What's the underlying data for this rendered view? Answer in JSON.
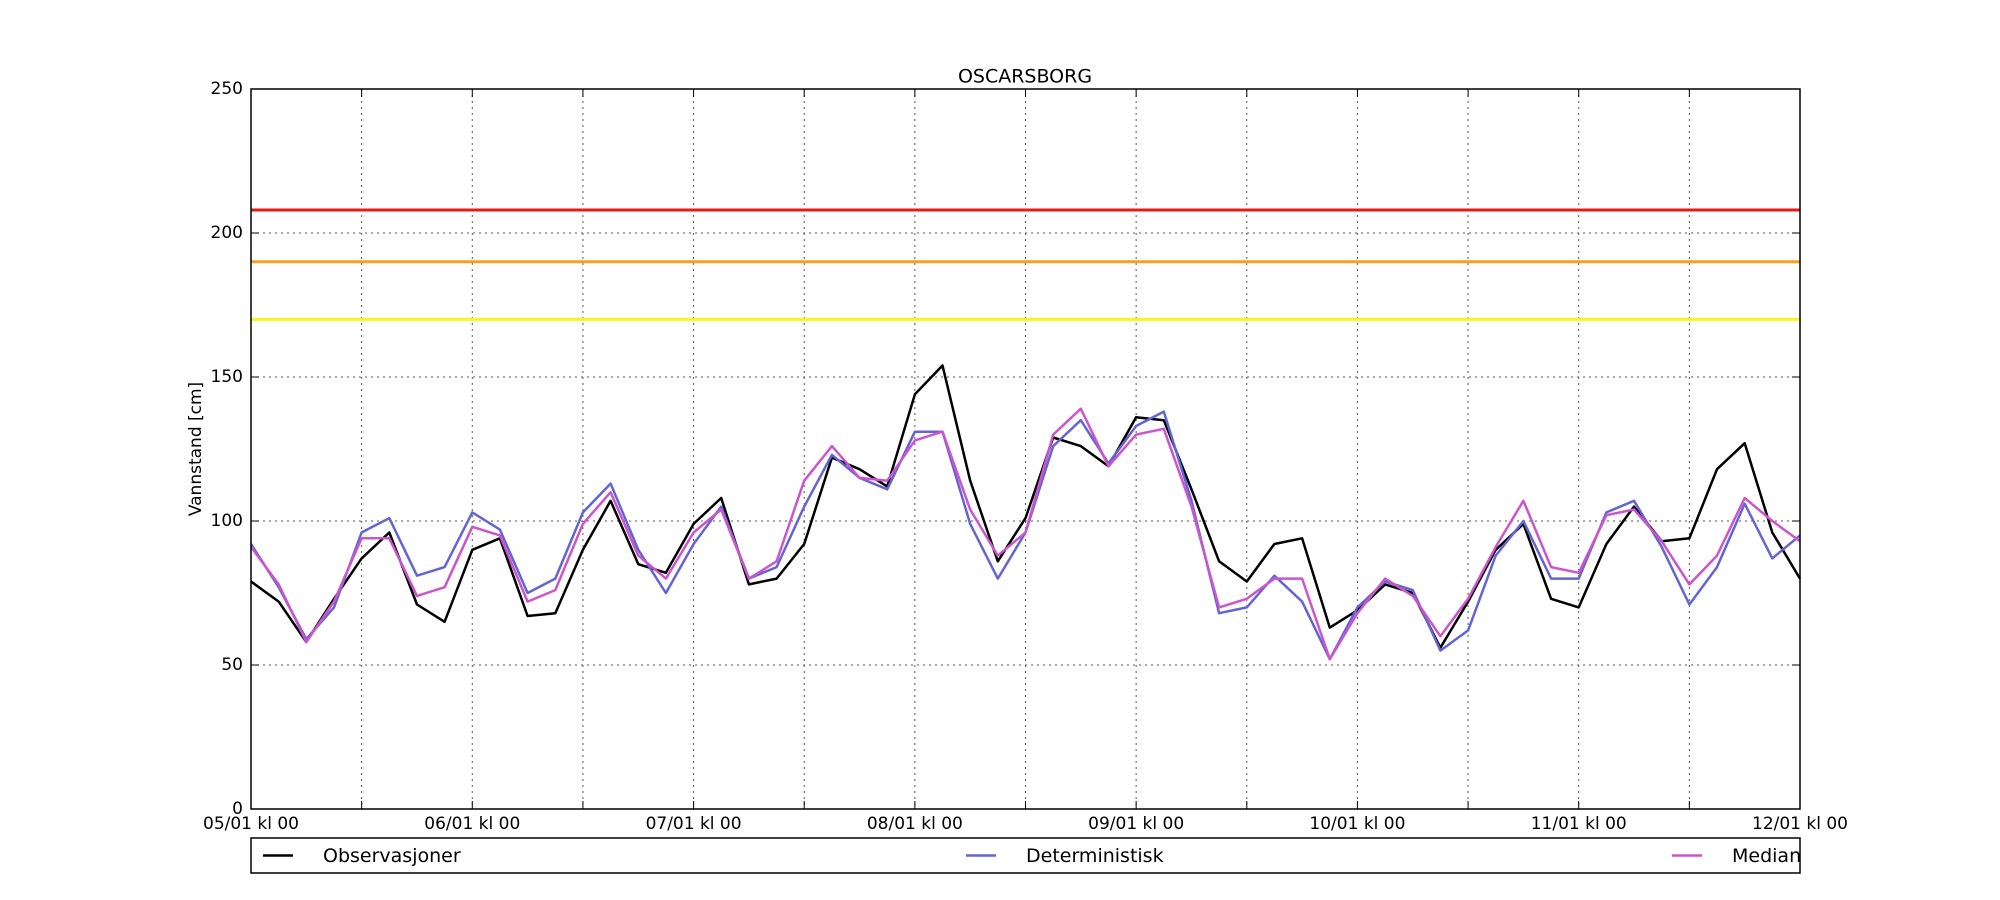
{
  "chart_data": {
    "type": "line",
    "title": "OSCARSBORG",
    "y_label": "Vannstand [cm]",
    "x": [
      0,
      3,
      6,
      9,
      12,
      15,
      18,
      21,
      24,
      27,
      30,
      33,
      36,
      39,
      42,
      45,
      48,
      51,
      54,
      57,
      60,
      63,
      66,
      69,
      72,
      75,
      78,
      81,
      84,
      87,
      90,
      93,
      96,
      99,
      102,
      105,
      108,
      111,
      114,
      117,
      120,
      123,
      126,
      129,
      132,
      135,
      138,
      141,
      144,
      147,
      150,
      153,
      156,
      159,
      162,
      165,
      168
    ],
    "xlim": [
      0,
      168
    ],
    "xticks": [
      {
        "value": 0,
        "label": "05/01 kl 00"
      },
      {
        "value": 24,
        "label": "06/01 kl 00"
      },
      {
        "value": 48,
        "label": "07/01 kl 00"
      },
      {
        "value": 72,
        "label": "08/01 kl 00"
      },
      {
        "value": 96,
        "label": "09/01 kl 00"
      },
      {
        "value": 120,
        "label": "10/01 kl 00"
      },
      {
        "value": 144,
        "label": "11/01 kl 00"
      },
      {
        "value": 168,
        "label": "12/01 kl 00"
      }
    ],
    "xticks_minor": [
      12,
      36,
      60,
      84,
      108,
      132,
      156
    ],
    "ylim": [
      0,
      250
    ],
    "yticks": [
      0,
      50,
      100,
      150,
      200,
      250
    ],
    "grid": true,
    "levels": [
      {
        "value": 208,
        "color": "#e8191c"
      },
      {
        "value": 190,
        "color": "#f5a11f"
      },
      {
        "value": 170,
        "color": "#f7f71d"
      }
    ],
    "series": [
      {
        "name": "Observasjoner",
        "color": "#000000",
        "values": [
          79,
          72,
          58,
          73,
          87,
          96,
          71,
          65,
          90,
          94,
          67,
          68,
          90,
          107,
          85,
          82,
          99,
          108,
          78,
          80,
          92,
          122,
          118,
          112,
          144,
          154,
          114,
          86,
          101,
          129,
          126,
          119,
          136,
          135,
          111,
          86,
          79,
          92,
          94,
          63,
          69,
          78,
          75,
          56,
          72,
          90,
          99,
          73,
          70,
          92,
          105,
          93,
          94,
          118,
          127,
          96,
          80
        ]
      },
      {
        "name": "Deterministisk",
        "color": "#6464d2",
        "values": [
          92,
          77,
          59,
          70,
          96,
          101,
          81,
          84,
          103,
          97,
          75,
          80,
          103,
          113,
          90,
          75,
          92,
          105,
          80,
          84,
          105,
          123,
          115,
          111,
          131,
          131,
          99,
          80,
          96,
          126,
          135,
          120,
          133,
          138,
          107,
          68,
          70,
          81,
          72,
          52,
          70,
          79,
          76,
          55,
          62,
          88,
          100,
          80,
          80,
          103,
          107,
          91,
          71,
          84,
          106,
          87,
          95
        ]
      },
      {
        "name": "Median",
        "color": "#cc55cc",
        "values": [
          91,
          78,
          58,
          72,
          94,
          94,
          74,
          77,
          98,
          95,
          72,
          76,
          99,
          110,
          88,
          80,
          96,
          104,
          80,
          86,
          114,
          126,
          115,
          114,
          128,
          131,
          104,
          88,
          96,
          130,
          139,
          119,
          130,
          132,
          105,
          70,
          73,
          80,
          80,
          52,
          68,
          80,
          74,
          60,
          73,
          91,
          107,
          84,
          82,
          102,
          104,
          93,
          78,
          88,
          108,
          100,
          93
        ]
      }
    ]
  }
}
